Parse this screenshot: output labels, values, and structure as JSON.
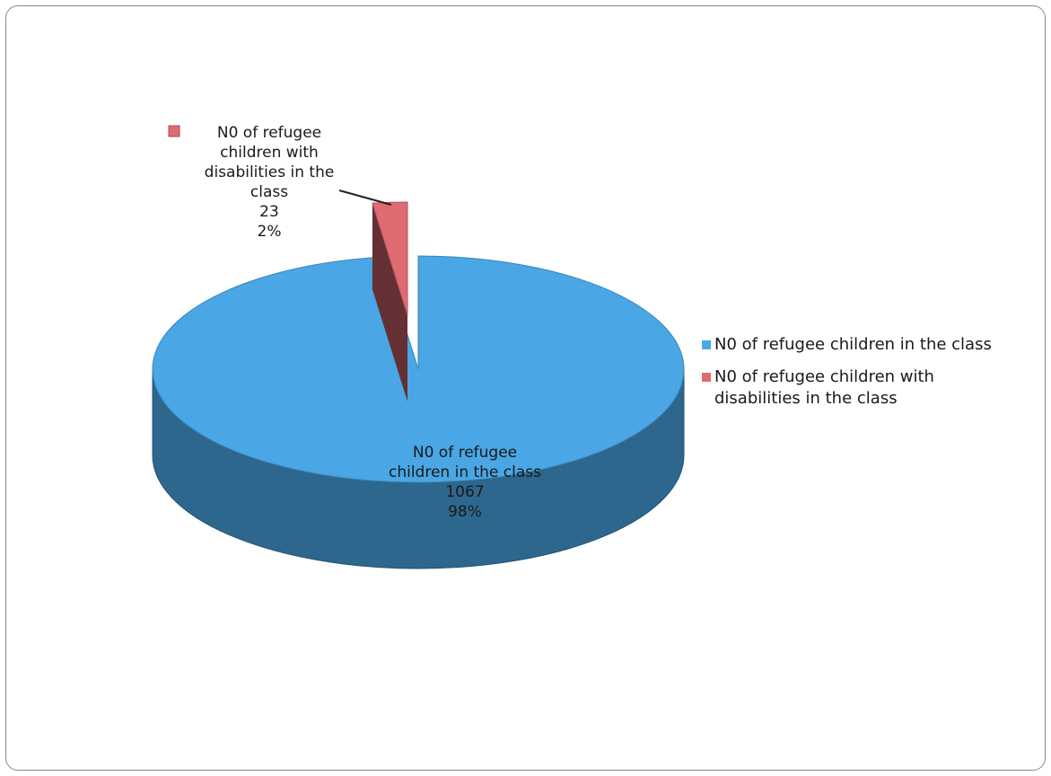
{
  "chart_data": {
    "type": "pie",
    "style": "3d-exploded",
    "slices": [
      {
        "name": "N0 of refugee children in the class",
        "value": 1067,
        "percent": "98%",
        "color": "#4aa6e4"
      },
      {
        "name": "N0 of refugee children with disabilities in the class",
        "value": 23,
        "percent": "2%",
        "color": "#e06a72"
      }
    ],
    "data_labels": [
      {
        "lines": [
          "N0 of refugee",
          "children in the class",
          "1067",
          "98%"
        ]
      },
      {
        "lines": [
          "N0 of refugee",
          "children with",
          "disabilities in the",
          "class",
          "23",
          "2%"
        ]
      }
    ],
    "legend": {
      "position": "right",
      "entries": [
        {
          "label": "N0 of refugee children in the class",
          "color": "#4aa6e4"
        },
        {
          "label": "N0 of refugee children with disabilities in the class",
          "color": "#e06a72"
        }
      ]
    }
  }
}
